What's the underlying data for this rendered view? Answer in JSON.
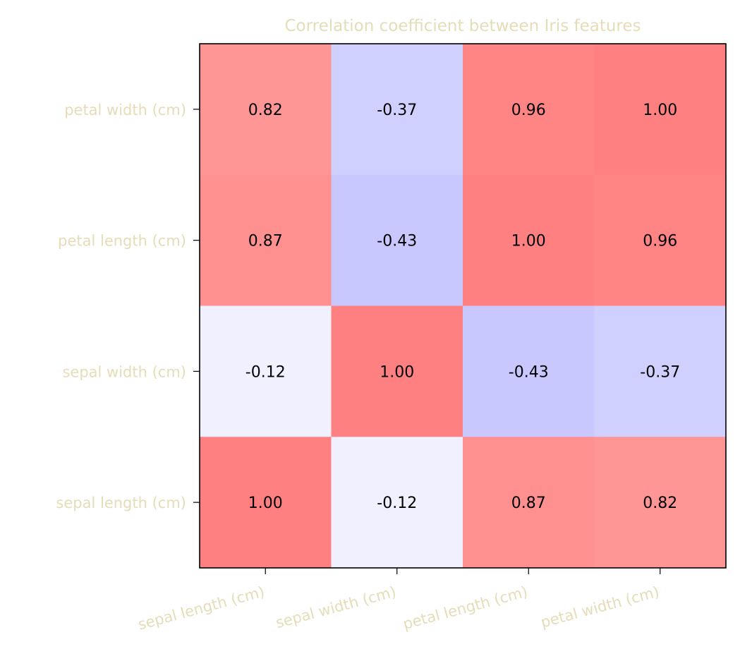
{
  "chart_data": {
    "type": "heatmap",
    "title": "Correlation coefficient between Iris features",
    "xlabel": "",
    "ylabel": "",
    "x_categories": [
      "sepal length (cm)",
      "sepal width (cm)",
      "petal length (cm)",
      "petal width (cm)"
    ],
    "y_categories_top_to_bottom": [
      "petal width (cm)",
      "petal length (cm)",
      "sepal width (cm)",
      "sepal length (cm)"
    ],
    "cell_labels": [
      [
        "0.82",
        "-0.37",
        "0.96",
        "1.00"
      ],
      [
        "0.87",
        "-0.43",
        "1.00",
        "0.96"
      ],
      [
        "-0.12",
        "1.00",
        "-0.43",
        "-0.37"
      ],
      [
        "1.00",
        "-0.12",
        "0.87",
        "0.82"
      ]
    ],
    "values": [
      [
        0.82,
        -0.37,
        0.96,
        1.0
      ],
      [
        0.87,
        -0.43,
        1.0,
        0.96
      ],
      [
        -0.12,
        1.0,
        -0.43,
        -0.37
      ],
      [
        1.0,
        -0.12,
        0.87,
        0.82
      ]
    ],
    "colorscale": "bwr",
    "vrange": [
      -1,
      1
    ],
    "label_color": "#e6dcb8",
    "frame_color": "#000000",
    "annotation_color": "#000000",
    "x_tick_rotation_deg": 15,
    "grid": false,
    "legend": "none"
  }
}
